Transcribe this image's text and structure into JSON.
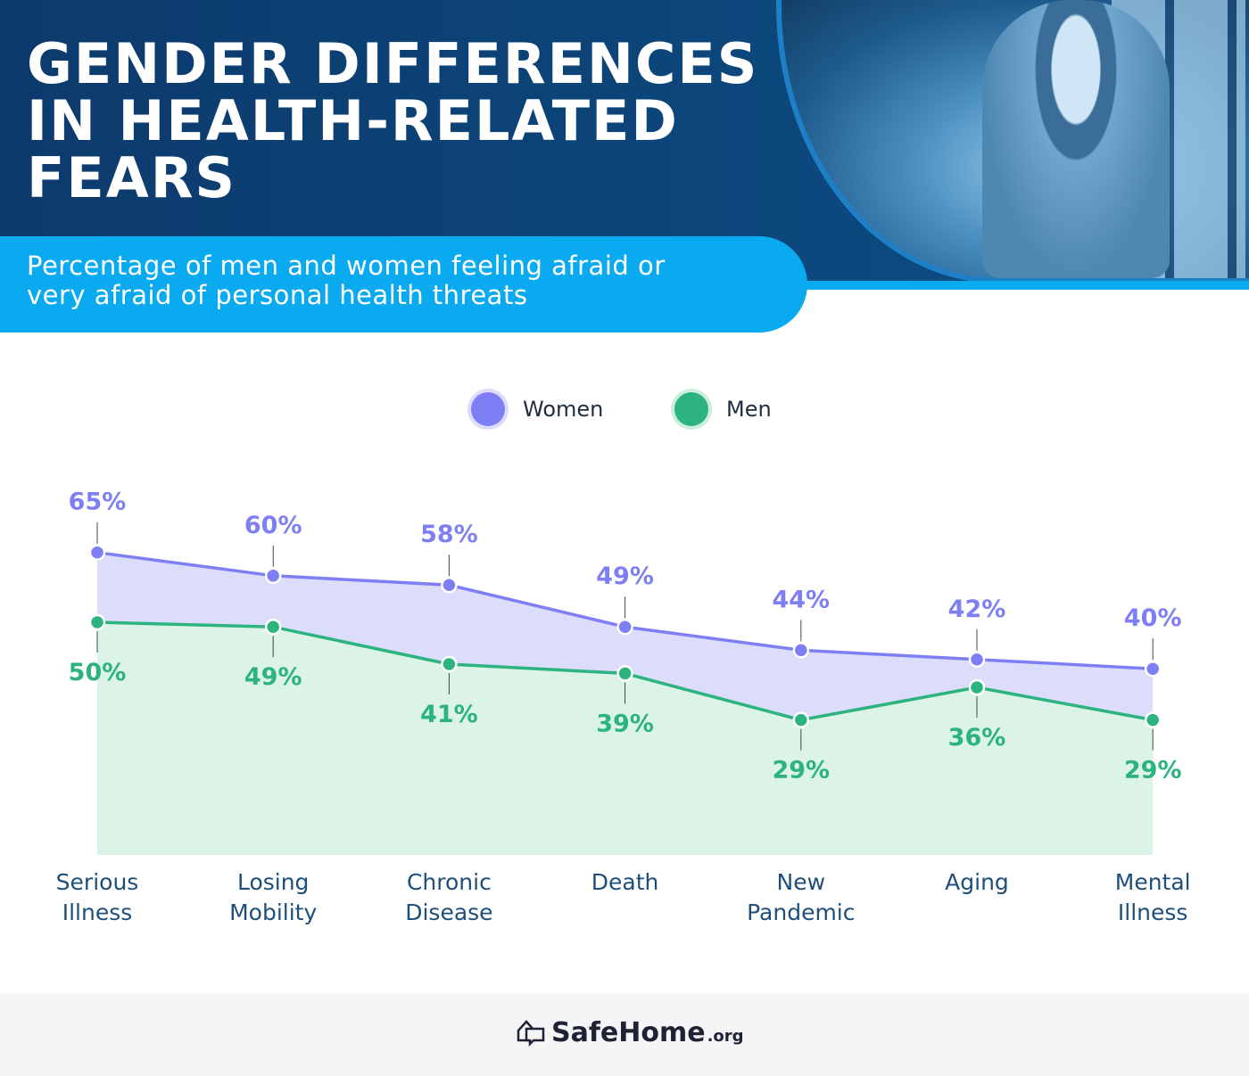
{
  "header": {
    "title_lines": [
      "GENDER DIFFERENCES",
      "IN HEALTH-RELATED",
      "FEARS"
    ],
    "subtitle_lines": [
      "Percentage of men and women feeling afraid or",
      "very afraid of personal health threats"
    ]
  },
  "legend": {
    "women": "Women",
    "men": "Men"
  },
  "footer": {
    "brand": "SafeHome",
    "tld": ".org"
  },
  "colors": {
    "women": "#7f7ff5",
    "men": "#2db37f",
    "women_fill": "#dcdcfb",
    "men_fill": "#dcf4e8",
    "header_dark": "#0d3a6c",
    "header_accent": "#0aaaf0"
  },
  "chart_data": {
    "type": "area",
    "title": "GENDER DIFFERENCES IN HEALTH-RELATED FEARS",
    "subtitle": "Percentage of men and women feeling afraid or very afraid of personal health threats",
    "categories": [
      [
        "Serious",
        "Illness"
      ],
      [
        "Losing",
        "Mobility"
      ],
      [
        "Chronic",
        "Disease"
      ],
      [
        "Death"
      ],
      [
        "New",
        "Pandemic"
      ],
      [
        "Aging"
      ],
      [
        "Mental",
        "Illness"
      ]
    ],
    "series": [
      {
        "name": "Women",
        "values": [
          65,
          60,
          58,
          49,
          44,
          42,
          40
        ]
      },
      {
        "name": "Men",
        "values": [
          50,
          49,
          41,
          39,
          29,
          36,
          29
        ]
      }
    ],
    "ylim": [
      0,
      65
    ],
    "unit": "%",
    "grid": false,
    "legend_position": "top-center"
  }
}
